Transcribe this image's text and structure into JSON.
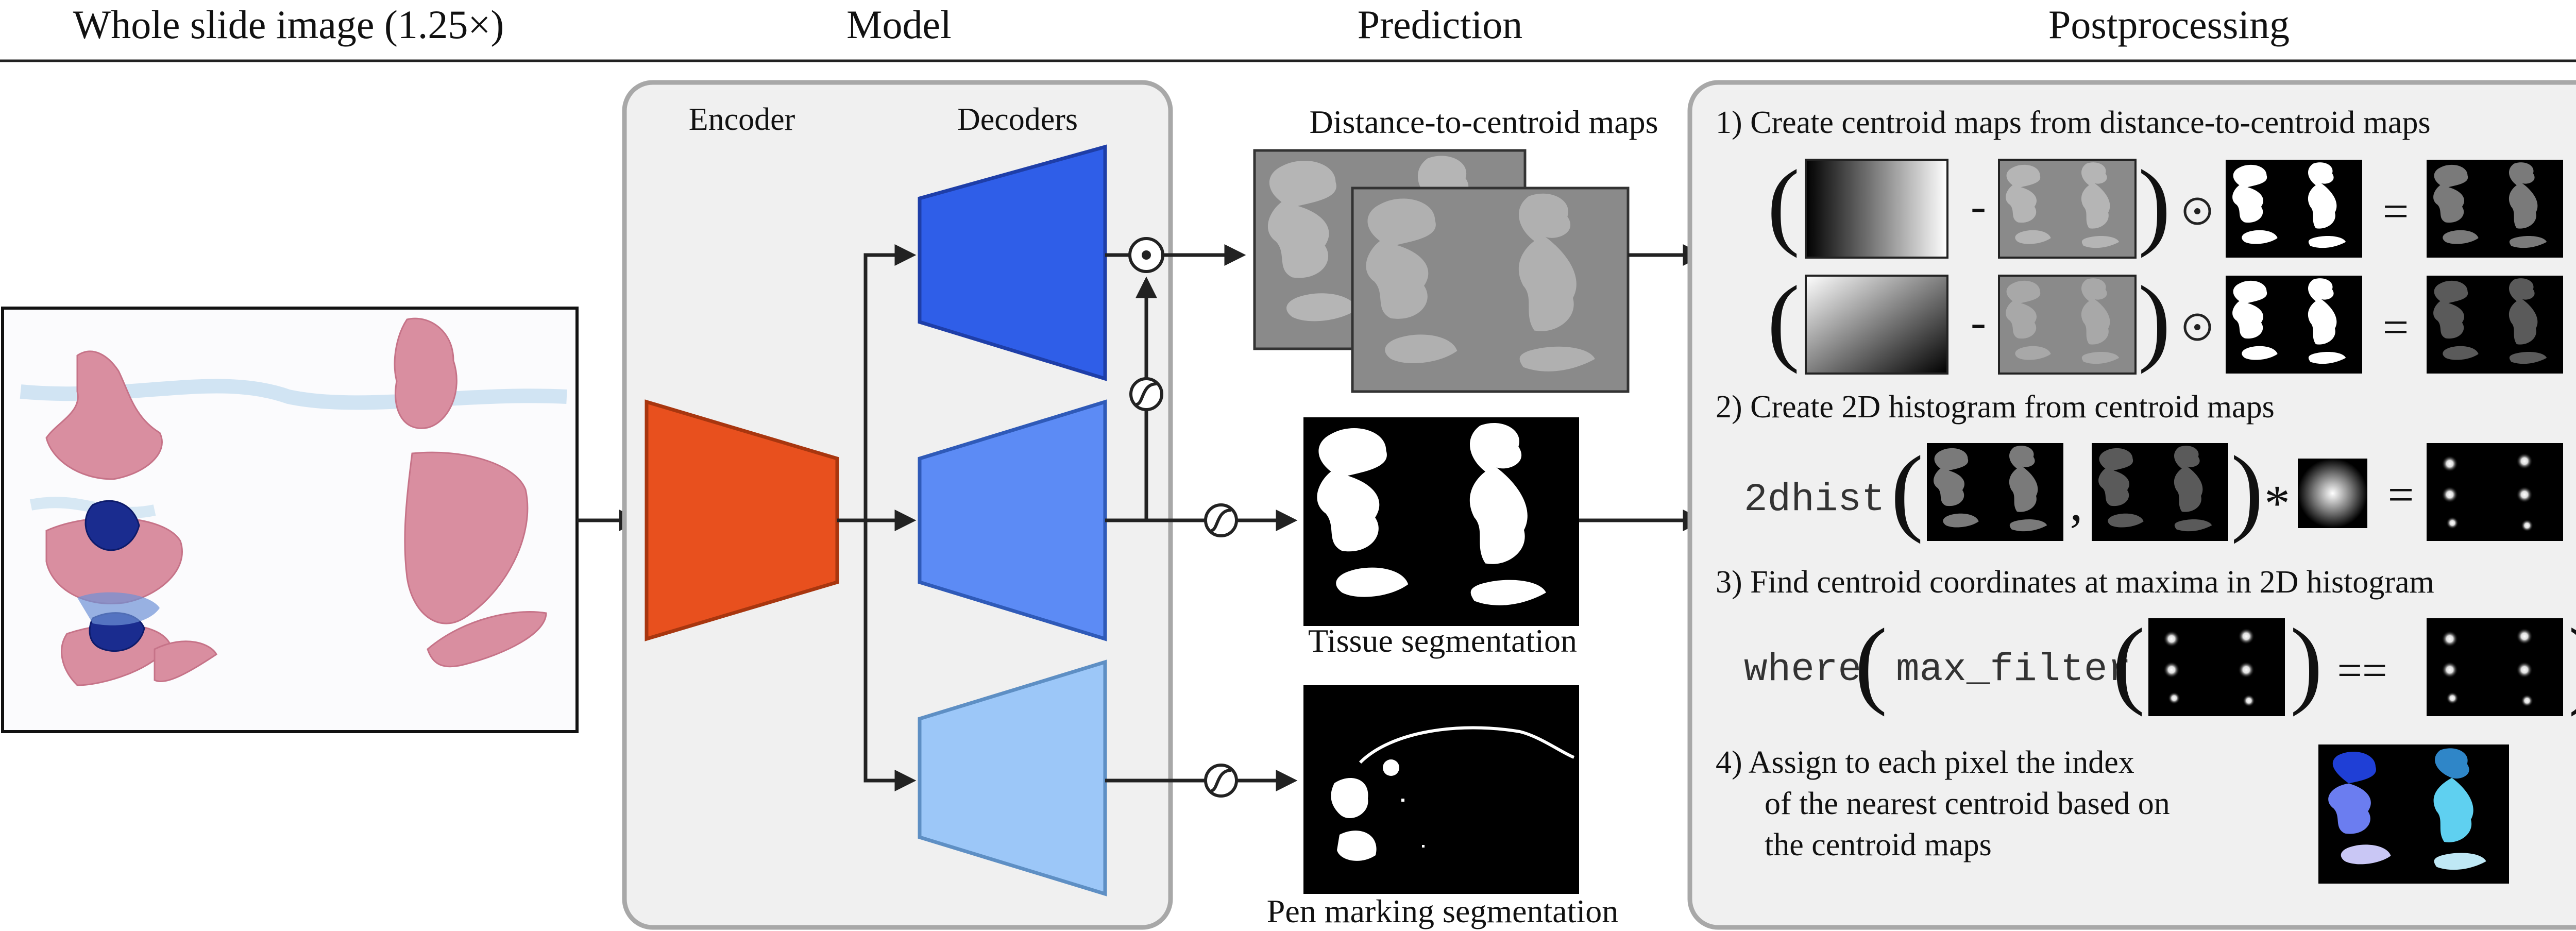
{
  "headers": {
    "wsi": "Whole slide image  (1.25×)",
    "model": "Model",
    "prediction": "Prediction",
    "postprocessing": "Postprocessing"
  },
  "model": {
    "encoder": "Encoder",
    "decoders": "Decoders"
  },
  "prediction": {
    "distance_maps": "Distance-to-centroid maps",
    "tissue": "Tissue segmentation",
    "pen": "Pen marking segmentation"
  },
  "post": {
    "step1": "1)  Create centroid maps from distance-to-centroid maps",
    "step2": "2)  Create 2D histogram from centroid maps",
    "step3": "3)  Find centroid coordinates at maxima in 2D histogram",
    "step4_l1": "4)  Assign to each pixel the index",
    "step4_l2": "of the nearest centroid based on",
    "step4_l3": "the centroid maps",
    "op_minus": "-",
    "op_equals": "=",
    "op_star": "*",
    "op_comma": ",",
    "op_eqeq": "==",
    "func_2dhist": "2dhist",
    "func_where": "where",
    "func_maxfilter": "max_filter"
  },
  "icons": [
    "multiply-icon",
    "sigmoid-icon",
    "arrow-icon",
    "blob-icon"
  ],
  "colors": {
    "encoder": "#E8501E",
    "decoder1": "#2F5EE8",
    "decoder2": "#5C8BF5",
    "decoder3": "#9CC7F8",
    "panel": "#F0F0F0",
    "panel_border": "#A8A8A8"
  }
}
